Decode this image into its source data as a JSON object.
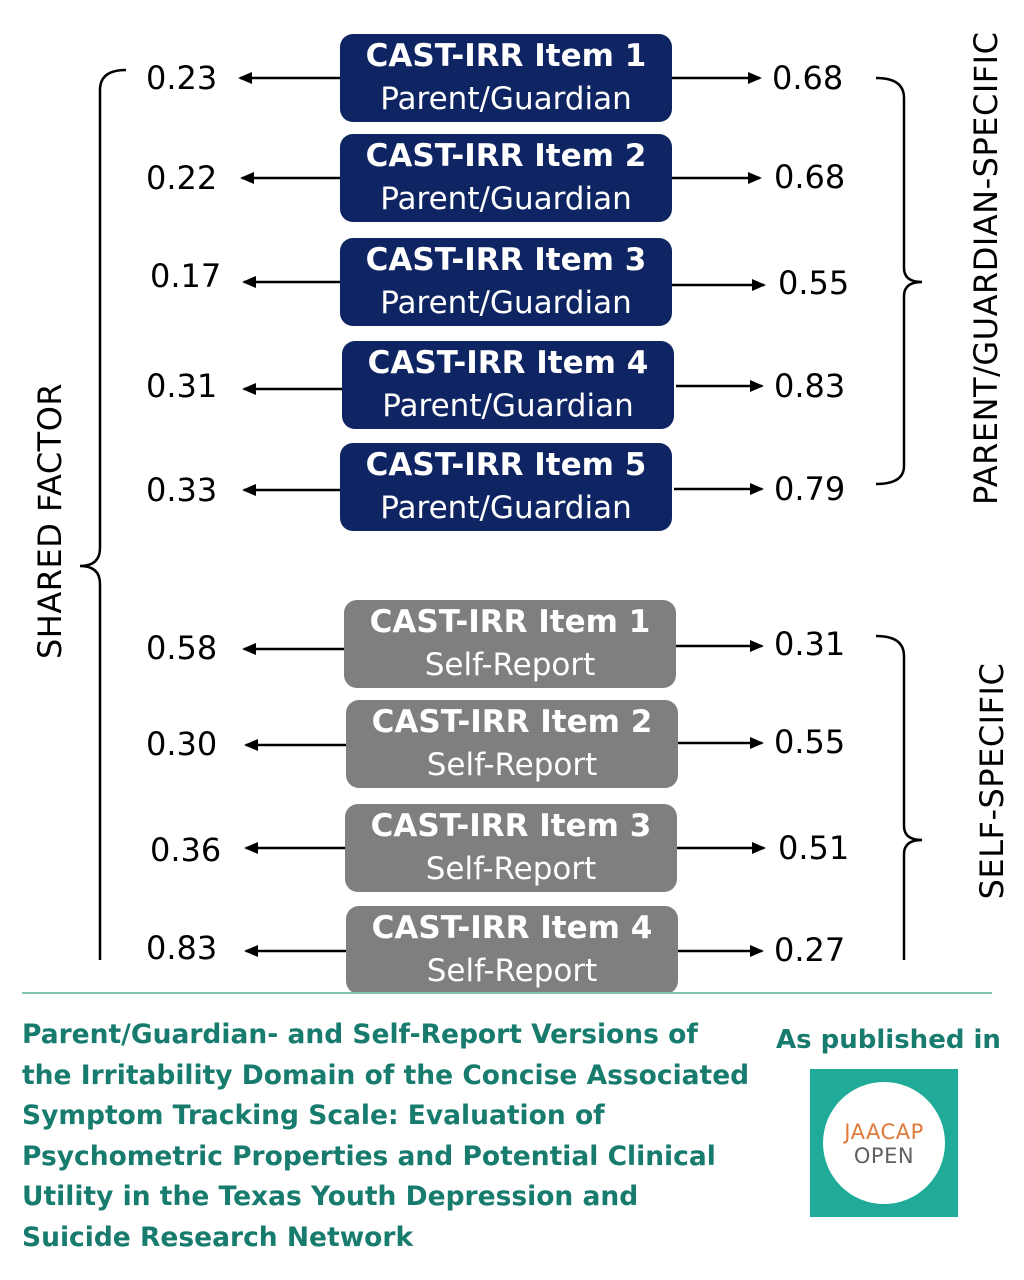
{
  "diagram": {
    "shared_label": "SHARED FACTOR",
    "parent_label": "PARENT/GUARDIAN-SPECIFIC",
    "self_label": "SELF-SPECIFIC",
    "parent_items": [
      {
        "title": "CAST-IRR Item 1",
        "subtitle": "Parent/Guardian",
        "shared": "0.23",
        "specific": "0.68"
      },
      {
        "title": "CAST-IRR Item 2",
        "subtitle": "Parent/Guardian",
        "shared": "0.22",
        "specific": "0.68"
      },
      {
        "title": "CAST-IRR Item 3",
        "subtitle": "Parent/Guardian",
        "shared": "0.17",
        "specific": "0.55"
      },
      {
        "title": "CAST-IRR Item 4",
        "subtitle": "Parent/Guardian",
        "shared": "0.31",
        "specific": "0.83"
      },
      {
        "title": "CAST-IRR Item 5",
        "subtitle": "Parent/Guardian",
        "shared": "0.33",
        "specific": "0.79"
      }
    ],
    "self_items": [
      {
        "title": "CAST-IRR Item 1",
        "subtitle": "Self-Report",
        "shared": "0.58",
        "specific": "0.31"
      },
      {
        "title": "CAST-IRR Item 2",
        "subtitle": "Self-Report",
        "shared": "0.30",
        "specific": "0.55"
      },
      {
        "title": "CAST-IRR Item 3",
        "subtitle": "Self-Report",
        "shared": "0.36",
        "specific": "0.51"
      },
      {
        "title": "CAST-IRR Item 4",
        "subtitle": "Self-Report",
        "shared": "0.83",
        "specific": "0.27"
      }
    ]
  },
  "footer": {
    "title": "Parent/Guardian- and Self-Report Versions of the Irritability Domain of the Concise Associated Symptom Tracking Scale: Evaluation of Psychometric Properties and Potential Clinical Utility in the Texas Youth Depression and Suicide Research Network",
    "published_label": "As published in",
    "logo_line1": "JAACAP",
    "logo_line2": "OPEN"
  },
  "colors": {
    "parent_box": "#0f2462",
    "self_box": "#7f7f7f",
    "accent": "#177b6e",
    "logo_bg": "#1fab98",
    "logo_orange": "#e07a3b"
  }
}
